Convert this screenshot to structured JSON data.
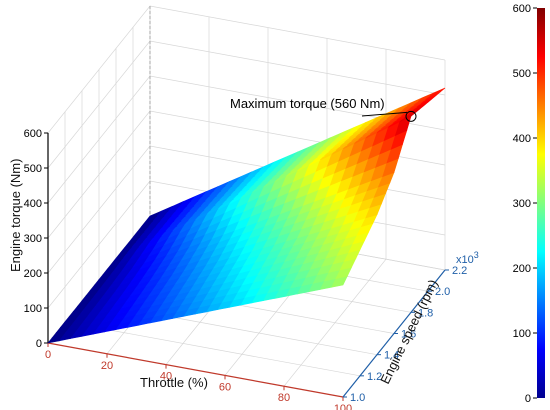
{
  "chart_data": {
    "type": "surface",
    "title": "",
    "x_axis": {
      "label": "Throttle (%)",
      "ticks": [
        "0",
        "20",
        "40",
        "60",
        "80",
        "100"
      ],
      "range": [
        0,
        100
      ],
      "color": "#c0392b"
    },
    "y_axis": {
      "label": "Engine speed (rpm)",
      "ticks": [
        "1.0",
        "1.2",
        "1.4",
        "1.6",
        "1.8",
        "2.0",
        "2.2"
      ],
      "range": [
        1.0,
        2.2
      ],
      "multiplier": "x10",
      "multiplier_exp": "3",
      "color": "#1f5fa8"
    },
    "z_axis": {
      "label": "Engine torque (Nm)",
      "ticks": [
        "0",
        "100",
        "200",
        "300",
        "400",
        "500",
        "600"
      ],
      "range": [
        0,
        600
      ],
      "color": "#000000"
    },
    "colorbar": {
      "ticks": [
        "0",
        "100",
        "200",
        "300",
        "400",
        "500",
        "600"
      ],
      "range": [
        0,
        600
      ]
    },
    "grid": true,
    "surface": {
      "throttle": [
        0,
        100
      ],
      "speed": [
        1.0,
        1.2,
        1.4,
        1.6,
        1.8,
        2.0,
        2.2
      ],
      "torque_at_full_throttle": [
        320,
        360,
        400,
        460,
        560,
        540,
        520
      ]
    },
    "annotation": {
      "text": "Maximum torque (560 Nm)",
      "throttle": 100,
      "speed": 1.8,
      "torque": 560
    }
  }
}
